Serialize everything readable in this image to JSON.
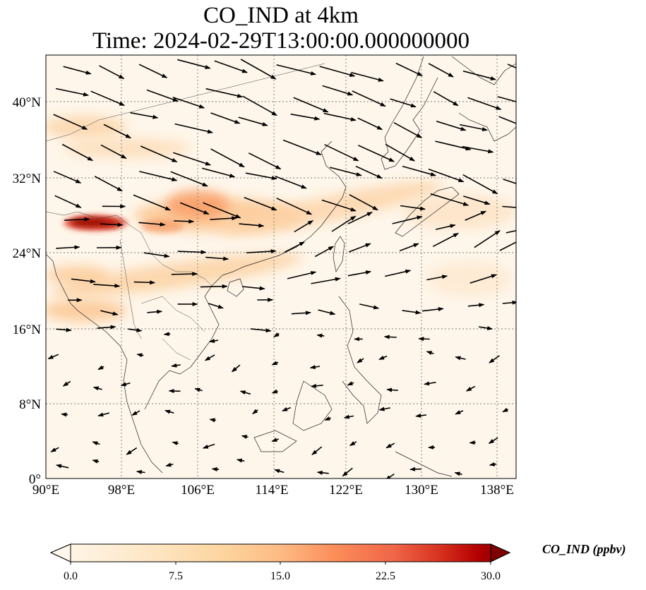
{
  "title": {
    "line1": "CO_IND at 4km",
    "line2": "Time: 2024-02-29T13:00:00.000000000"
  },
  "map": {
    "projection": "PlateCarree",
    "lon_range": [
      90,
      139
    ],
    "lat_range": [
      0,
      44
    ],
    "gridlines": "dotted",
    "coastlines": true,
    "country_borders": true
  },
  "axes": {
    "x_ticks": [
      "90°E",
      "98°E",
      "106°E",
      "114°E",
      "122°E",
      "130°E",
      "138°E"
    ],
    "x_tick_values": [
      90,
      98,
      106,
      114,
      122,
      130,
      138
    ],
    "y_ticks": [
      "0°",
      "8°N",
      "16°N",
      "24°N",
      "32°N",
      "40°N"
    ],
    "y_tick_values": [
      0,
      8,
      16,
      24,
      32,
      40
    ]
  },
  "colorbar": {
    "label": "CO_IND (ppbv)",
    "colormap": "OrRd",
    "ticks": [
      "0.0",
      "7.5",
      "15.0",
      "22.5",
      "30.0"
    ],
    "tick_values": [
      0,
      7.5,
      15,
      22.5,
      30
    ],
    "extend": "both"
  },
  "colors": {
    "low": "#fff7ec",
    "mid": "#fdbb84",
    "high": "#d7301f",
    "max": "#7f0000",
    "arrows": "#000000",
    "grid": "#666666"
  }
}
